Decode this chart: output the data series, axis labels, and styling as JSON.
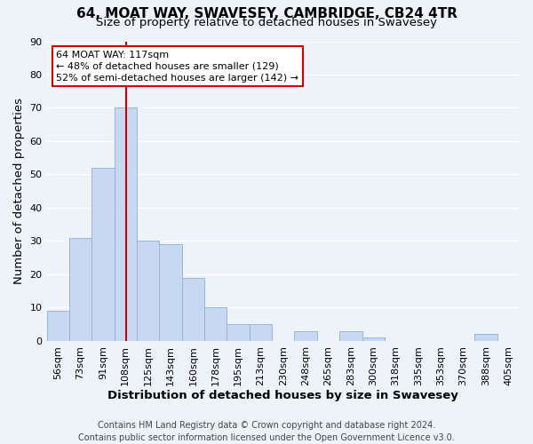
{
  "title": "64, MOAT WAY, SWAVESEY, CAMBRIDGE, CB24 4TR",
  "subtitle": "Size of property relative to detached houses in Swavesey",
  "xlabel": "Distribution of detached houses by size in Swavesey",
  "ylabel": "Number of detached properties",
  "bar_labels": [
    "56sqm",
    "73sqm",
    "91sqm",
    "108sqm",
    "125sqm",
    "143sqm",
    "160sqm",
    "178sqm",
    "195sqm",
    "213sqm",
    "230sqm",
    "248sqm",
    "265sqm",
    "283sqm",
    "300sqm",
    "318sqm",
    "335sqm",
    "353sqm",
    "370sqm",
    "388sqm",
    "405sqm"
  ],
  "bar_values": [
    9,
    31,
    52,
    70,
    30,
    29,
    19,
    10,
    5,
    5,
    0,
    3,
    0,
    3,
    1,
    0,
    0,
    0,
    0,
    2,
    0
  ],
  "bar_color": "#c6d9f1",
  "bar_edge_color": "#9ab5d9",
  "annotation_text": "64 MOAT WAY: 117sqm\n← 48% of detached houses are smaller (129)\n52% of semi-detached houses are larger (142) →",
  "annotation_box_color": "#ffffff",
  "annotation_box_edge_color": "#cc0000",
  "ylim": [
    0,
    90
  ],
  "yticks": [
    0,
    10,
    20,
    30,
    40,
    50,
    60,
    70,
    80,
    90
  ],
  "footer_text": "Contains HM Land Registry data © Crown copyright and database right 2024.\nContains public sector information licensed under the Open Government Licence v3.0.",
  "background_color": "#eef2f9",
  "grid_color": "#ffffff",
  "title_fontsize": 11,
  "subtitle_fontsize": 9.5,
  "axis_label_fontsize": 9.5,
  "tick_fontsize": 8,
  "footer_fontsize": 7,
  "annotation_fontsize": 8,
  "red_line_color": "#cc0000"
}
